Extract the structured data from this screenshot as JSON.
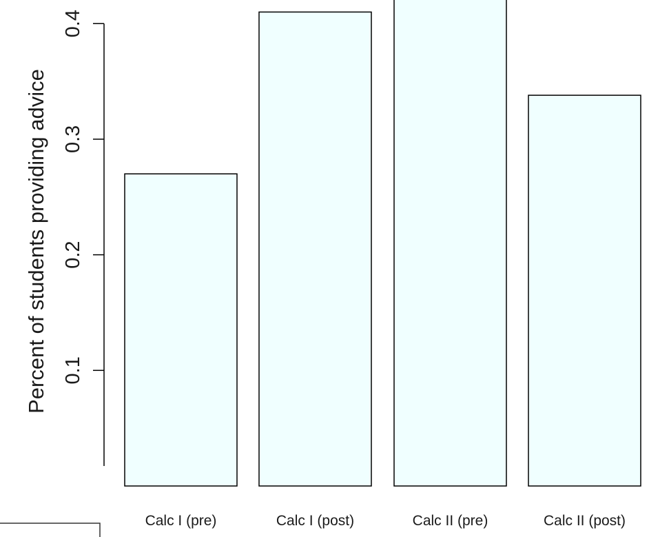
{
  "chart_data": {
    "type": "bar",
    "title": "",
    "xlabel": "",
    "ylabel": "Percent of students providing advice",
    "categories": [
      "Calc I (pre)",
      "Calc I (post)",
      "Calc II (pre)",
      "Calc II (post)"
    ],
    "values": [
      0.27,
      0.41,
      0.43,
      0.338
    ],
    "yticks": [
      0.1,
      0.2,
      0.3,
      0.4
    ],
    "ytick_labels": [
      "0.1",
      "0.2",
      "0.3",
      "0.4"
    ],
    "ylim": [
      0,
      0.43
    ],
    "bar_color": "#f0ffff",
    "bar_edge_color": "#000000",
    "grid": false,
    "legend": false
  }
}
